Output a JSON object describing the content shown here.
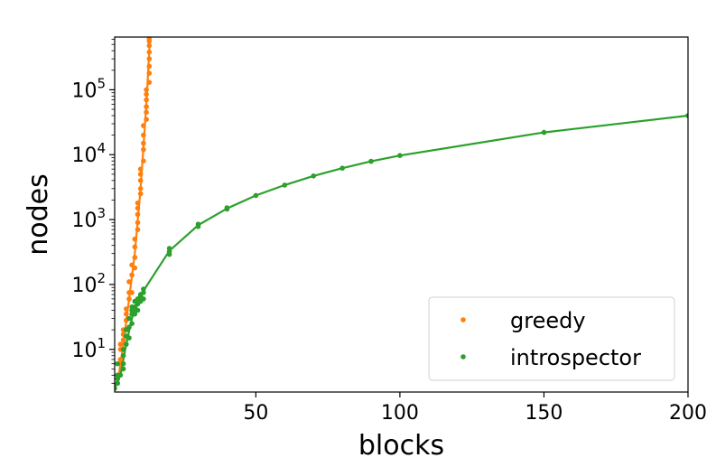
{
  "chart_data": {
    "type": "scatter",
    "xlabel": "blocks",
    "ylabel": "nodes",
    "xlim": [
      1,
      200
    ],
    "ylim": [
      2.2,
      650000
    ],
    "yscale": "log",
    "x_ticks": [
      50,
      100,
      150,
      200
    ],
    "y_ticks": [
      {
        "value": 10,
        "base": "10",
        "exp": "1"
      },
      {
        "value": 100,
        "base": "10",
        "exp": "2"
      },
      {
        "value": 1000,
        "base": "10",
        "exp": "3"
      },
      {
        "value": 10000,
        "base": "10",
        "exp": "4"
      },
      {
        "value": 100000,
        "base": "10",
        "exp": "5"
      }
    ],
    "legend_position": "bottom-right",
    "series": [
      {
        "name": "greedy",
        "color": "#ff7f0e",
        "points": [
          [
            2,
            3
          ],
          [
            3,
            7
          ],
          [
            3,
            10
          ],
          [
            3,
            12
          ],
          [
            4,
            14
          ],
          [
            4,
            17
          ],
          [
            4,
            20
          ],
          [
            5,
            28
          ],
          [
            5,
            35
          ],
          [
            5,
            42
          ],
          [
            6,
            60
          ],
          [
            6,
            75
          ],
          [
            7,
            75
          ],
          [
            6,
            110
          ],
          [
            7,
            140
          ],
          [
            7,
            200
          ],
          [
            8,
            180
          ],
          [
            8,
            260
          ],
          [
            8,
            380
          ],
          [
            8,
            500
          ],
          [
            9,
            700
          ],
          [
            9,
            900
          ],
          [
            9,
            1200
          ],
          [
            9,
            1500
          ],
          [
            9,
            1800
          ],
          [
            10,
            2500
          ],
          [
            10,
            3000
          ],
          [
            10,
            4000
          ],
          [
            10,
            5000
          ],
          [
            10,
            6000
          ],
          [
            11,
            8000
          ],
          [
            11,
            12000
          ],
          [
            11,
            15000
          ],
          [
            11,
            20000
          ],
          [
            11,
            28000
          ],
          [
            12,
            35000
          ],
          [
            12,
            45000
          ],
          [
            12,
            55000
          ],
          [
            12,
            70000
          ],
          [
            12,
            85000
          ],
          [
            12,
            100000
          ],
          [
            13,
            130000
          ],
          [
            13,
            180000
          ],
          [
            13,
            230000
          ],
          [
            13,
            300000
          ],
          [
            13,
            380000
          ],
          [
            13,
            480000
          ],
          [
            13,
            560000
          ],
          [
            13,
            620000
          ]
        ],
        "trend": [
          [
            2,
            3
          ],
          [
            4,
            12
          ],
          [
            6,
            60
          ],
          [
            8,
            300
          ],
          [
            10,
            3000
          ],
          [
            12,
            60000
          ],
          [
            13.3,
            650000
          ]
        ]
      },
      {
        "name": "introspector",
        "color": "#2ca02c",
        "points": [
          [
            1,
            2.5
          ],
          [
            2,
            3
          ],
          [
            2,
            3.5
          ],
          [
            2,
            4
          ],
          [
            2,
            6
          ],
          [
            3,
            4
          ],
          [
            4,
            5
          ],
          [
            4,
            6
          ],
          [
            4,
            8
          ],
          [
            4,
            10
          ],
          [
            5,
            12
          ],
          [
            5,
            16
          ],
          [
            5,
            20
          ],
          [
            6,
            15
          ],
          [
            6,
            22
          ],
          [
            6,
            30
          ],
          [
            7,
            25
          ],
          [
            7,
            35
          ],
          [
            7,
            40
          ],
          [
            7,
            45
          ],
          [
            8,
            35
          ],
          [
            8,
            45
          ],
          [
            8,
            55
          ],
          [
            9,
            40
          ],
          [
            9,
            50
          ],
          [
            9,
            60
          ],
          [
            10,
            55
          ],
          [
            10,
            65
          ],
          [
            10,
            70
          ],
          [
            11,
            60
          ],
          [
            11,
            75
          ],
          [
            11,
            85
          ],
          [
            20,
            290
          ],
          [
            20,
            320
          ],
          [
            20,
            360
          ],
          [
            30,
            780
          ],
          [
            30,
            850
          ],
          [
            40,
            1450
          ],
          [
            40,
            1520
          ],
          [
            50,
            2350
          ],
          [
            60,
            3400
          ],
          [
            70,
            4700
          ],
          [
            80,
            6200
          ],
          [
            90,
            7900
          ],
          [
            100,
            9700
          ],
          [
            150,
            22000
          ],
          [
            200,
            40000
          ]
        ],
        "trend": [
          [
            1,
            2.5
          ],
          [
            3,
            4
          ],
          [
            5,
            12
          ],
          [
            7,
            30
          ],
          [
            9,
            50
          ],
          [
            11,
            80
          ],
          [
            20,
            330
          ],
          [
            30,
            820
          ],
          [
            40,
            1480
          ],
          [
            50,
            2350
          ],
          [
            60,
            3400
          ],
          [
            70,
            4700
          ],
          [
            80,
            6200
          ],
          [
            90,
            7900
          ],
          [
            100,
            9700
          ],
          [
            150,
            22000
          ],
          [
            200,
            40000
          ]
        ]
      }
    ]
  }
}
